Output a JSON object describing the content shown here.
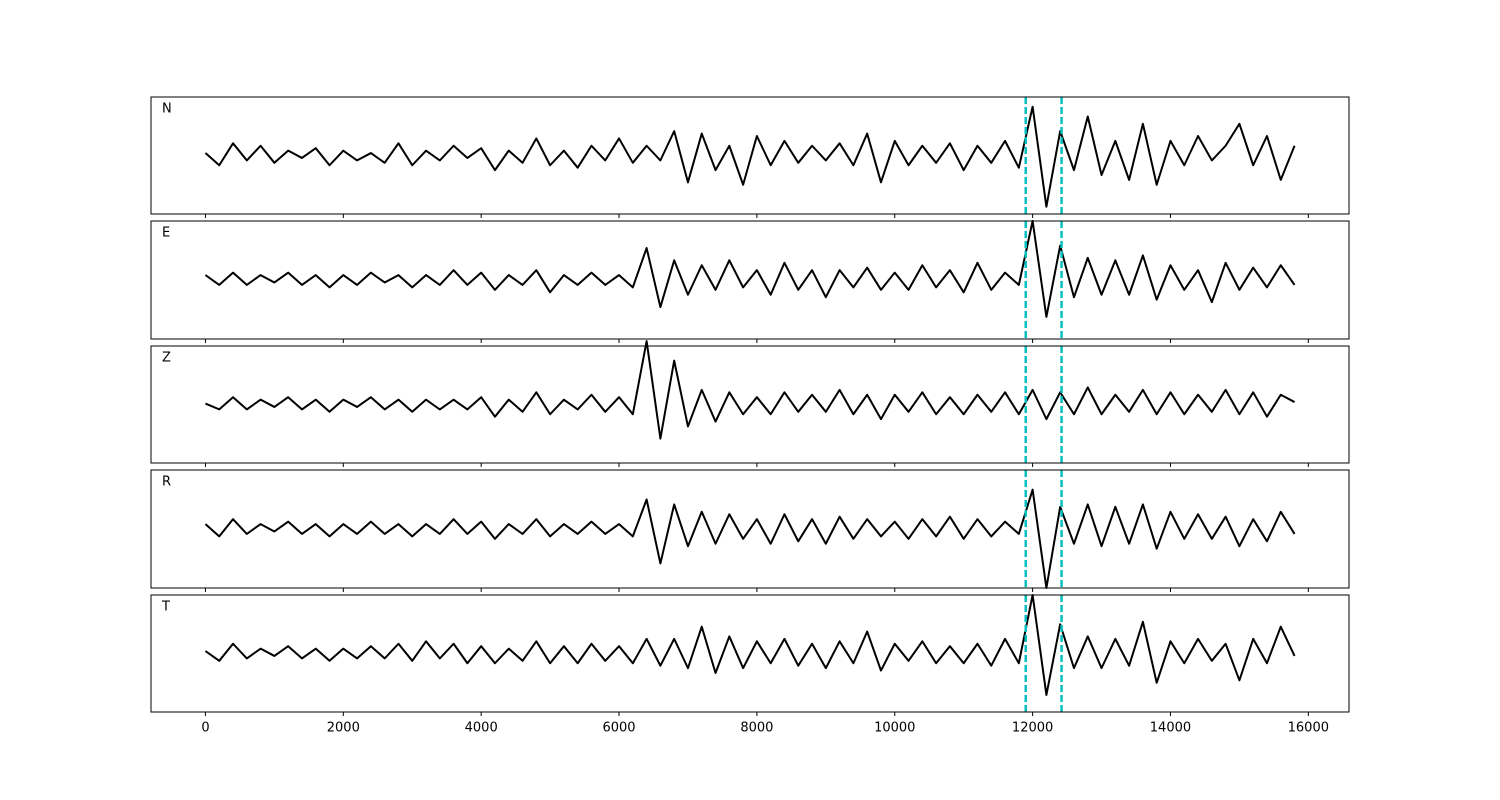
{
  "chart_data": {
    "type": "line",
    "layout": "stacked",
    "x": [
      0,
      200,
      400,
      600,
      800,
      1000,
      1200,
      1400,
      1600,
      1800,
      2000,
      2200,
      2400,
      2600,
      2800,
      3000,
      3200,
      3400,
      3600,
      3800,
      4000,
      4200,
      4400,
      4600,
      4800,
      5000,
      5200,
      5400,
      5600,
      5800,
      6000,
      6200,
      6400,
      6600,
      6800,
      7000,
      7200,
      7400,
      7600,
      7800,
      8000,
      8200,
      8400,
      8600,
      8800,
      9000,
      9200,
      9400,
      9600,
      9800,
      10000,
      10200,
      10400,
      10600,
      10800,
      11000,
      11200,
      11400,
      11600,
      11800,
      12000,
      12200,
      12400,
      12600,
      12800,
      13000,
      13200,
      13400,
      13600,
      13800,
      14000,
      14200,
      14400,
      14600,
      14800,
      15000,
      15200,
      15400,
      15600,
      15800
    ],
    "xlim": [
      -790,
      16590
    ],
    "xticks": [
      0,
      2000,
      4000,
      6000,
      8000,
      10000,
      12000,
      14000,
      16000
    ],
    "ylim": [
      -1.2,
      1.2
    ],
    "vlines": [
      11900,
      12420
    ],
    "vline_color": "#00bfbf",
    "series": [
      {
        "name": "N",
        "color": "#000000",
        "values": [
          0.05,
          -0.2,
          0.25,
          -0.1,
          0.2,
          -0.15,
          0.1,
          -0.05,
          0.15,
          -0.2,
          0.1,
          -0.1,
          0.05,
          -0.15,
          0.25,
          -0.2,
          0.1,
          -0.1,
          0.2,
          -0.05,
          0.15,
          -0.3,
          0.1,
          -0.15,
          0.35,
          -0.2,
          0.1,
          -0.25,
          0.2,
          -0.1,
          0.35,
          -0.15,
          0.2,
          -0.1,
          0.5,
          -0.55,
          0.45,
          -0.3,
          0.2,
          -0.6,
          0.4,
          -0.2,
          0.3,
          -0.15,
          0.2,
          -0.1,
          0.25,
          -0.2,
          0.45,
          -0.55,
          0.3,
          -0.2,
          0.2,
          -0.15,
          0.25,
          -0.3,
          0.2,
          -0.15,
          0.3,
          -0.25,
          1.0,
          -1.05,
          0.5,
          -0.3,
          0.8,
          -0.4,
          0.3,
          -0.5,
          0.65,
          -0.6,
          0.3,
          -0.2,
          0.4,
          -0.1,
          0.2,
          0.65,
          -0.2,
          0.4,
          -0.5,
          0.2
        ]
      },
      {
        "name": "E",
        "color": "#000000",
        "values": [
          0.1,
          -0.1,
          0.15,
          -0.1,
          0.1,
          -0.05,
          0.15,
          -0.1,
          0.1,
          -0.15,
          0.1,
          -0.1,
          0.15,
          -0.05,
          0.1,
          -0.15,
          0.1,
          -0.1,
          0.2,
          -0.1,
          0.15,
          -0.2,
          0.1,
          -0.1,
          0.2,
          -0.25,
          0.1,
          -0.1,
          0.15,
          -0.1,
          0.1,
          -0.15,
          0.65,
          -0.55,
          0.4,
          -0.3,
          0.3,
          -0.2,
          0.4,
          -0.15,
          0.2,
          -0.3,
          0.35,
          -0.2,
          0.2,
          -0.35,
          0.2,
          -0.15,
          0.25,
          -0.2,
          0.15,
          -0.2,
          0.3,
          -0.15,
          0.2,
          -0.25,
          0.35,
          -0.2,
          0.15,
          -0.1,
          1.2,
          -0.75,
          0.7,
          -0.35,
          0.45,
          -0.3,
          0.4,
          -0.3,
          0.5,
          -0.4,
          0.3,
          -0.2,
          0.2,
          -0.45,
          0.35,
          -0.2,
          0.25,
          -0.15,
          0.3,
          -0.1
        ]
      },
      {
        "name": "Z",
        "color": "#000000",
        "values": [
          0.02,
          -0.1,
          0.15,
          -0.1,
          0.1,
          -0.05,
          0.15,
          -0.1,
          0.1,
          -0.15,
          0.1,
          -0.05,
          0.15,
          -0.1,
          0.1,
          -0.15,
          0.1,
          -0.1,
          0.1,
          -0.1,
          0.15,
          -0.25,
          0.1,
          -0.15,
          0.25,
          -0.2,
          0.1,
          -0.1,
          0.2,
          -0.15,
          0.15,
          -0.2,
          1.3,
          -0.7,
          0.9,
          -0.45,
          0.3,
          -0.35,
          0.25,
          -0.2,
          0.15,
          -0.2,
          0.25,
          -0.15,
          0.2,
          -0.15,
          0.3,
          -0.2,
          0.2,
          -0.3,
          0.2,
          -0.15,
          0.25,
          -0.2,
          0.15,
          -0.2,
          0.2,
          -0.15,
          0.25,
          -0.2,
          0.3,
          -0.3,
          0.25,
          -0.2,
          0.35,
          -0.2,
          0.2,
          -0.15,
          0.3,
          -0.2,
          0.25,
          -0.2,
          0.2,
          -0.15,
          0.3,
          -0.2,
          0.25,
          -0.25,
          0.2,
          0.05
        ]
      },
      {
        "name": "R",
        "color": "#000000",
        "values": [
          0.1,
          -0.15,
          0.2,
          -0.1,
          0.1,
          -0.05,
          0.15,
          -0.1,
          0.1,
          -0.15,
          0.1,
          -0.1,
          0.15,
          -0.1,
          0.1,
          -0.15,
          0.1,
          -0.1,
          0.2,
          -0.1,
          0.15,
          -0.2,
          0.1,
          -0.1,
          0.2,
          -0.15,
          0.1,
          -0.1,
          0.15,
          -0.1,
          0.1,
          -0.15,
          0.6,
          -0.7,
          0.5,
          -0.35,
          0.35,
          -0.3,
          0.3,
          -0.2,
          0.2,
          -0.3,
          0.3,
          -0.25,
          0.2,
          -0.3,
          0.25,
          -0.2,
          0.2,
          -0.15,
          0.15,
          -0.2,
          0.2,
          -0.15,
          0.25,
          -0.2,
          0.2,
          -0.15,
          0.15,
          -0.1,
          0.8,
          -1.2,
          0.45,
          -0.3,
          0.5,
          -0.35,
          0.45,
          -0.3,
          0.5,
          -0.4,
          0.35,
          -0.2,
          0.3,
          -0.2,
          0.25,
          -0.35,
          0.2,
          -0.25,
          0.35,
          -0.1
        ]
      },
      {
        "name": "T",
        "color": "#000000",
        "values": [
          0.05,
          -0.15,
          0.2,
          -0.1,
          0.1,
          -0.05,
          0.15,
          -0.1,
          0.1,
          -0.15,
          0.1,
          -0.1,
          0.15,
          -0.1,
          0.2,
          -0.15,
          0.25,
          -0.1,
          0.2,
          -0.2,
          0.15,
          -0.2,
          0.1,
          -0.15,
          0.25,
          -0.2,
          0.15,
          -0.2,
          0.2,
          -0.15,
          0.15,
          -0.2,
          0.3,
          -0.25,
          0.3,
          -0.3,
          0.55,
          -0.4,
          0.35,
          -0.3,
          0.25,
          -0.2,
          0.3,
          -0.25,
          0.2,
          -0.3,
          0.25,
          -0.2,
          0.45,
          -0.35,
          0.2,
          -0.15,
          0.25,
          -0.2,
          0.15,
          -0.2,
          0.2,
          -0.25,
          0.3,
          -0.2,
          1.2,
          -0.85,
          0.6,
          -0.3,
          0.35,
          -0.3,
          0.3,
          -0.25,
          0.65,
          -0.6,
          0.25,
          -0.2,
          0.3,
          -0.15,
          0.2,
          -0.55,
          0.3,
          -0.2,
          0.55,
          -0.05
        ]
      }
    ]
  }
}
